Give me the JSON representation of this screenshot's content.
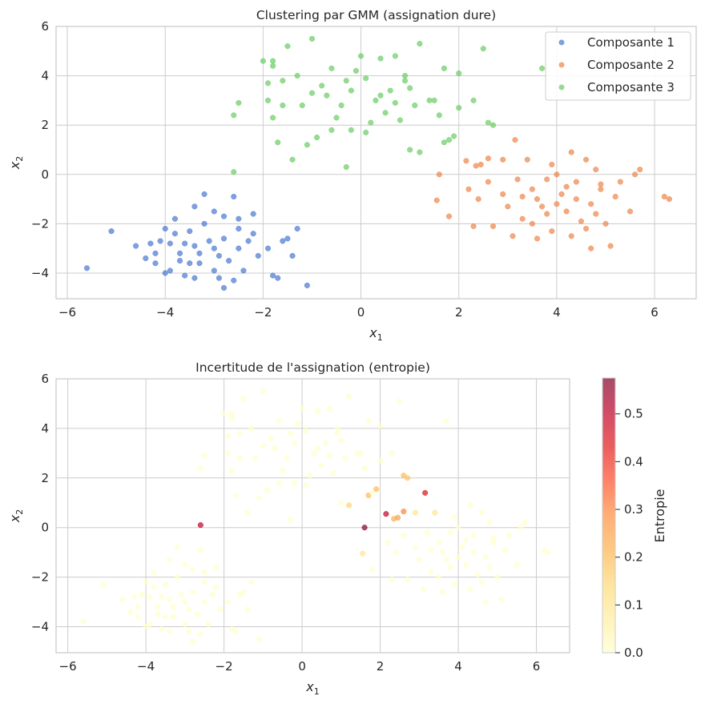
{
  "chart_data": [
    {
      "type": "scatter",
      "title": "Clustering par GMM (assignation dure)",
      "xlabel": "x1",
      "ylabel": "x2",
      "xlim": [
        -6.23,
        6.85
      ],
      "ylim": [
        -5.04,
        6
      ],
      "xticks": [
        -6,
        -4,
        -2,
        0,
        2,
        4,
        6
      ],
      "yticks": [
        -4,
        -2,
        0,
        2,
        4,
        6
      ],
      "grid": true,
      "legend_placement": "top-right",
      "series": [
        {
          "name": "Composante 1",
          "color": "#4878d0",
          "points": [
            [
              -5.6,
              -3.8
            ],
            [
              -5.1,
              -2.3
            ],
            [
              -4.6,
              -2.9
            ],
            [
              -4.3,
              -2.8
            ],
            [
              -4.4,
              -3.4
            ],
            [
              -4.2,
              -3.2
            ],
            [
              -4.0,
              -2.2
            ],
            [
              -3.8,
              -1.8
            ],
            [
              -4.0,
              -4.0
            ],
            [
              -3.9,
              -3.9
            ],
            [
              -3.5,
              -3.6
            ],
            [
              -3.4,
              -4.2
            ],
            [
              -3.2,
              -0.8
            ],
            [
              -3.0,
              -1.5
            ],
            [
              -2.8,
              -1.7
            ],
            [
              -2.8,
              -2.6
            ],
            [
              -2.6,
              -0.9
            ],
            [
              -2.5,
              -1.8
            ],
            [
              -2.5,
              -3.0
            ],
            [
              -2.3,
              -2.7
            ],
            [
              -2.2,
              -1.6
            ],
            [
              -2.1,
              -3.3
            ],
            [
              -1.9,
              -3.0
            ],
            [
              -1.8,
              -4.1
            ],
            [
              -1.6,
              -2.7
            ],
            [
              -1.5,
              -2.6
            ],
            [
              -1.4,
              -3.3
            ],
            [
              -1.3,
              -2.2
            ],
            [
              -1.1,
              -4.5
            ],
            [
              -1.7,
              -4.2
            ],
            [
              -2.9,
              -4.2
            ],
            [
              -2.8,
              -4.6
            ],
            [
              -3.0,
              -3.9
            ],
            [
              -3.5,
              -2.3
            ],
            [
              -3.4,
              -2.9
            ],
            [
              -3.7,
              -3.2
            ],
            [
              -3.8,
              -2.4
            ],
            [
              -3.9,
              -2.8
            ],
            [
              -3.2,
              -2.0
            ],
            [
              -3.1,
              -2.7
            ],
            [
              -3.3,
              -3.6
            ],
            [
              -2.7,
              -3.5
            ],
            [
              -2.4,
              -3.9
            ],
            [
              -3.7,
              -3.5
            ],
            [
              -3.4,
              -1.3
            ],
            [
              -4.1,
              -2.7
            ],
            [
              -4.2,
              -3.6
            ],
            [
              -3.6,
              -2.8
            ],
            [
              -2.9,
              -3.3
            ],
            [
              -2.5,
              -2.2
            ],
            [
              -3.0,
              -3.0
            ],
            [
              -3.3,
              -3.2
            ],
            [
              -2.2,
              -2.4
            ],
            [
              -3.6,
              -4.1
            ],
            [
              -2.6,
              -4.3
            ]
          ]
        },
        {
          "name": "Composante 2",
          "color": "#ee854a",
          "points": [
            [
              1.6,
              0.0
            ],
            [
              1.55,
              -1.05
            ],
            [
              1.8,
              -1.7
            ],
            [
              2.2,
              -0.6
            ],
            [
              2.15,
              0.55
            ],
            [
              2.35,
              0.35
            ],
            [
              2.45,
              0.4
            ],
            [
              2.6,
              0.65
            ],
            [
              2.4,
              -1.0
            ],
            [
              2.3,
              -2.1
            ],
            [
              2.6,
              -0.3
            ],
            [
              2.9,
              0.6
            ],
            [
              3.15,
              1.4
            ],
            [
              3.0,
              -1.3
            ],
            [
              3.1,
              -2.5
            ],
            [
              3.3,
              -0.9
            ],
            [
              3.4,
              0.6
            ],
            [
              3.5,
              -2.0
            ],
            [
              3.6,
              -1.0
            ],
            [
              3.8,
              -0.2
            ],
            [
              3.8,
              -1.6
            ],
            [
              3.9,
              -2.3
            ],
            [
              4.0,
              0.0
            ],
            [
              4.1,
              -0.8
            ],
            [
              4.2,
              -1.5
            ],
            [
              4.3,
              -2.5
            ],
            [
              4.3,
              0.9
            ],
            [
              4.4,
              -0.3
            ],
            [
              4.5,
              -1.9
            ],
            [
              4.6,
              0.6
            ],
            [
              4.7,
              -1.2
            ],
            [
              4.7,
              -3.0
            ],
            [
              4.8,
              0.2
            ],
            [
              4.9,
              -0.6
            ],
            [
              5.0,
              -2.0
            ],
            [
              5.1,
              -2.9
            ],
            [
              5.2,
              -0.9
            ],
            [
              5.5,
              -1.5
            ],
            [
              5.7,
              0.2
            ],
            [
              5.6,
              0.0
            ],
            [
              6.2,
              -0.9
            ],
            [
              6.3,
              -1.0
            ],
            [
              3.2,
              -0.2
            ],
            [
              3.5,
              -0.6
            ],
            [
              4.0,
              -1.2
            ],
            [
              4.4,
              -1.0
            ],
            [
              3.7,
              -1.3
            ],
            [
              4.2,
              -0.5
            ],
            [
              2.7,
              -2.1
            ],
            [
              3.3,
              -1.8
            ],
            [
              4.6,
              -2.2
            ],
            [
              3.9,
              0.4
            ],
            [
              4.8,
              -1.6
            ],
            [
              5.3,
              -0.3
            ],
            [
              2.9,
              -0.8
            ],
            [
              3.6,
              -2.6
            ],
            [
              4.9,
              -0.4
            ]
          ]
        },
        {
          "name": "Composante 3",
          "color": "#6acc64",
          "points": [
            [
              -2.6,
              0.1
            ],
            [
              -2.6,
              2.4
            ],
            [
              -2.5,
              2.9
            ],
            [
              -2.0,
              4.6
            ],
            [
              -1.8,
              4.6
            ],
            [
              -1.8,
              4.4
            ],
            [
              -1.5,
              5.2
            ],
            [
              -1.9,
              3.7
            ],
            [
              -1.9,
              3.0
            ],
            [
              -1.8,
              2.3
            ],
            [
              -1.7,
              1.3
            ],
            [
              -1.6,
              3.8
            ],
            [
              -1.4,
              0.6
            ],
            [
              -1.3,
              4.0
            ],
            [
              -1.2,
              2.8
            ],
            [
              -1.0,
              5.5
            ],
            [
              -1.0,
              3.3
            ],
            [
              -0.9,
              1.5
            ],
            [
              -0.7,
              3.2
            ],
            [
              -0.6,
              4.3
            ],
            [
              -0.5,
              2.3
            ],
            [
              -0.3,
              3.8
            ],
            [
              -0.3,
              0.3
            ],
            [
              -0.2,
              1.8
            ],
            [
              -0.1,
              4.2
            ],
            [
              0.0,
              4.8
            ],
            [
              0.1,
              3.9
            ],
            [
              0.2,
              2.1
            ],
            [
              0.3,
              3.0
            ],
            [
              0.4,
              4.7
            ],
            [
              0.5,
              2.5
            ],
            [
              0.6,
              3.4
            ],
            [
              0.7,
              4.8
            ],
            [
              0.8,
              2.2
            ],
            [
              0.9,
              3.8
            ],
            [
              1.0,
              1.0
            ],
            [
              1.1,
              2.8
            ],
            [
              1.2,
              5.3
            ],
            [
              1.2,
              0.9
            ],
            [
              1.4,
              3.0
            ],
            [
              1.6,
              2.4
            ],
            [
              1.7,
              1.3
            ],
            [
              1.9,
              1.55
            ],
            [
              1.7,
              4.3
            ],
            [
              1.8,
              1.4
            ],
            [
              2.0,
              2.7
            ],
            [
              2.0,
              4.1
            ],
            [
              2.5,
              5.1
            ],
            [
              2.3,
              3.0
            ],
            [
              2.6,
              2.1
            ],
            [
              2.7,
              2.0
            ],
            [
              3.7,
              4.3
            ],
            [
              -0.4,
              2.8
            ],
            [
              -0.8,
              3.6
            ],
            [
              0.1,
              1.7
            ],
            [
              0.4,
              3.2
            ],
            [
              1.0,
              3.5
            ],
            [
              -1.1,
              1.2
            ],
            [
              -1.6,
              2.8
            ],
            [
              -0.6,
              1.8
            ],
            [
              0.7,
              2.9
            ],
            [
              1.5,
              3.0
            ],
            [
              -0.2,
              3.4
            ],
            [
              0.9,
              4.0
            ]
          ]
        }
      ]
    },
    {
      "type": "scatter",
      "title": "Incertitude de l'assignation (entropie)",
      "xlabel": "x1",
      "ylabel": "x2",
      "xlim": [
        -6.3,
        6.85
      ],
      "ylim": [
        -5.05,
        6
      ],
      "xticks": [
        -6,
        -4,
        -2,
        0,
        2,
        4,
        6
      ],
      "yticks": [
        -4,
        -2,
        0,
        2,
        4,
        6
      ],
      "grid": true,
      "colormap": "YlOrRd",
      "colorbar": {
        "label": "Entropie",
        "range": [
          0,
          0.575
        ],
        "ticks": [
          "0.0",
          "0.1",
          "0.2",
          "0.3",
          "0.4",
          "0.5"
        ]
      },
      "high_entropy_points": [
        [
          -2.6,
          0.1,
          0.5
        ],
        [
          1.6,
          0.0,
          0.57
        ],
        [
          2.15,
          0.55,
          0.5
        ],
        [
          3.15,
          1.4,
          0.45
        ],
        [
          2.6,
          0.65,
          0.3
        ],
        [
          2.45,
          0.4,
          0.25
        ],
        [
          2.35,
          0.35,
          0.22
        ],
        [
          1.9,
          1.55,
          0.2
        ],
        [
          1.7,
          1.3,
          0.2
        ],
        [
          2.6,
          2.05,
          0.2
        ],
        [
          2.7,
          2.0,
          0.18
        ],
        [
          1.2,
          0.9,
          0.15
        ],
        [
          1.55,
          -1.05,
          0.1
        ],
        [
          2.9,
          0.6,
          0.1
        ],
        [
          3.4,
          0.6,
          0.1
        ]
      ],
      "default_entropy": 0.0
    }
  ]
}
